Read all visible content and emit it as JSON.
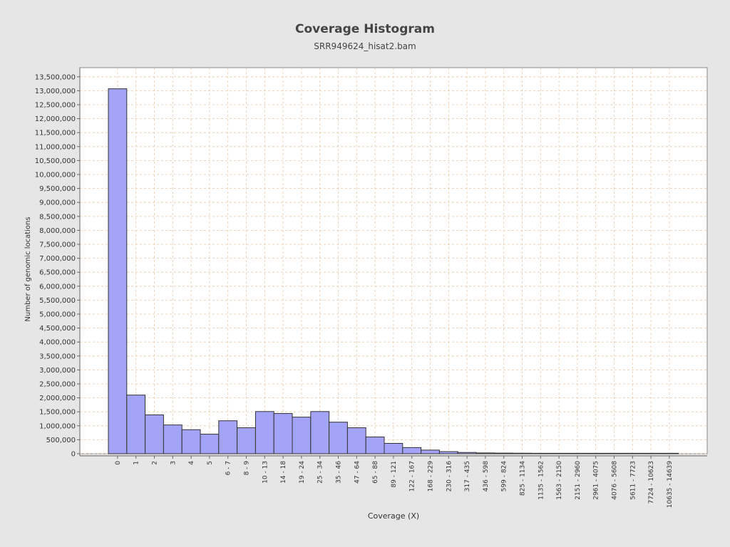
{
  "chart_data": {
    "type": "bar",
    "title": "Coverage Histogram",
    "subtitle": "SRR949624_hisat2.bam",
    "xlabel": "Coverage (X)",
    "ylabel": "Number of genomic locations",
    "ylim": [
      0,
      13750000
    ],
    "yticks": [
      0,
      500000,
      1000000,
      1500000,
      2000000,
      2500000,
      3000000,
      3500000,
      4000000,
      4500000,
      5000000,
      5500000,
      6000000,
      6500000,
      7000000,
      7500000,
      8000000,
      8500000,
      9000000,
      9500000,
      10000000,
      10500000,
      11000000,
      11500000,
      12000000,
      12500000,
      13000000,
      13500000
    ],
    "ytick_labels": [
      "0",
      "500,000",
      "1,000,000",
      "1,500,000",
      "2,000,000",
      "2,500,000",
      "3,000,000",
      "3,500,000",
      "4,000,000",
      "4,500,000",
      "5,000,000",
      "5,500,000",
      "6,000,000",
      "6,500,000",
      "7,000,000",
      "7,500,000",
      "8,000,000",
      "8,500,000",
      "9,000,000",
      "9,500,000",
      "10,000,000",
      "10,500,000",
      "11,000,000",
      "11,500,000",
      "12,000,000",
      "12,500,000",
      "13,000,000",
      "13,500,000"
    ],
    "categories": [
      "0",
      "1",
      "2",
      "3",
      "4",
      "5",
      "6 - 7",
      "8 - 9",
      "10 - 13",
      "14 - 18",
      "19 - 24",
      "25 - 34",
      "35 - 46",
      "47 - 64",
      "65 - 88",
      "89 - 121",
      "122 - 167",
      "168 - 229",
      "230 - 316",
      "317 - 435",
      "436 - 598",
      "599 - 824",
      "825 - 1134",
      "1135 - 1562",
      "1563 - 2150",
      "2151 - 2960",
      "2961 - 4075",
      "4076 - 5608",
      "5611 - 7723",
      "7724 - 10623",
      "10635 - 14639"
    ],
    "values": [
      13070000,
      2100000,
      1390000,
      1030000,
      860000,
      700000,
      1180000,
      930000,
      1510000,
      1440000,
      1310000,
      1510000,
      1130000,
      930000,
      600000,
      370000,
      220000,
      130000,
      75000,
      45000,
      28000,
      22000,
      18000,
      15000,
      8000,
      5000,
      3000,
      2000,
      1500,
      1000,
      500
    ],
    "grid": true,
    "legend": "none",
    "colors": {
      "bar_fill": "#a3a3f8",
      "bar_stroke": "#333333",
      "grid": "#e8c9a8",
      "plot_bg": "#ffffff",
      "page_bg": "#e6e6e6"
    }
  }
}
